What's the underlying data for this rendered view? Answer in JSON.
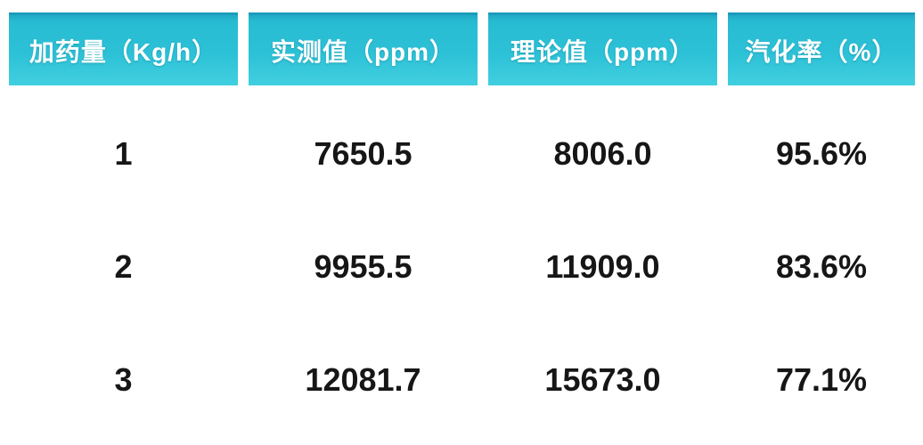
{
  "chart_data": {
    "type": "table",
    "title": "",
    "columns": [
      "加药量（Kg/h）",
      "实测值（ppm）",
      "理论值（ppm）",
      "汽化率（%）"
    ],
    "rows": [
      [
        "1",
        "7650.5",
        "8006.0",
        "95.6%"
      ],
      [
        "2",
        "9955.5",
        "11909.0",
        "83.6%"
      ],
      [
        "3",
        "12081.7",
        "15673.0",
        "77.1%"
      ]
    ]
  },
  "colors": {
    "header_teal": "#2CC1D7",
    "header_teal_dark": "#1A9CBA",
    "header_teal_light": "#41CFE0",
    "header_text": "#FFFFFF",
    "body_text": "#161616",
    "background": "#FFFFFF"
  }
}
